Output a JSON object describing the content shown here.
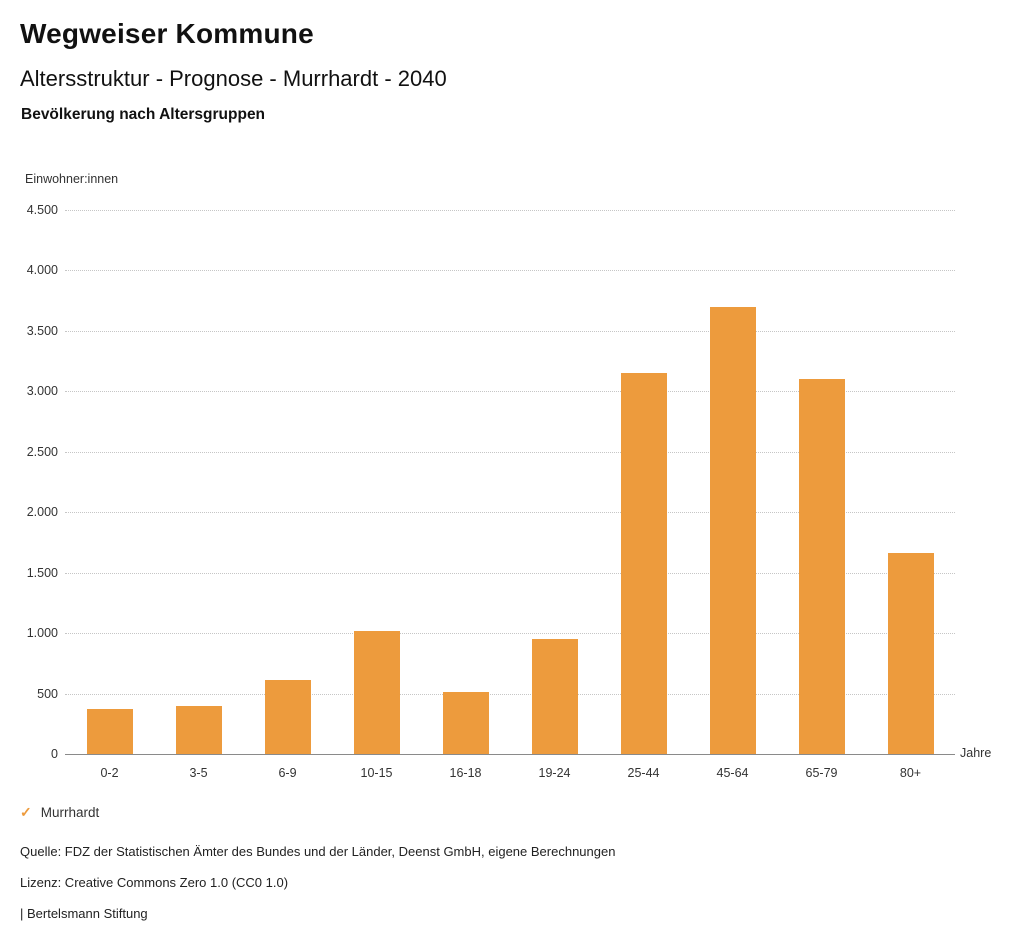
{
  "header": {
    "title": "Wegweiser Kommune",
    "subtitle": "Altersstruktur - Prognose - Murrhardt - 2040",
    "chart_subtitle": "Bevölkerung nach Altersgruppen"
  },
  "colors": {
    "accent": "#ED9B3D",
    "grid": "#c6c6c6",
    "text": "#333333"
  },
  "chart_data": {
    "type": "bar",
    "title": "Bevölkerung nach Altersgruppen",
    "categories": [
      "0-2",
      "3-5",
      "6-9",
      "10-15",
      "16-18",
      "19-24",
      "25-44",
      "45-64",
      "65-79",
      "80+"
    ],
    "series": [
      {
        "name": "Murrhardt",
        "values": [
          370,
          400,
          610,
          1020,
          510,
          950,
          3150,
          3700,
          3100,
          1660
        ]
      }
    ],
    "xlabel": "Jahre",
    "ylabel": "Einwohner:innen",
    "ylim": [
      0,
      4500
    ],
    "ytick_values": [
      0,
      500,
      1000,
      1500,
      2000,
      2500,
      3000,
      3500,
      4000,
      4500
    ],
    "ytick_labels": [
      "0",
      "500",
      "1.000",
      "1.500",
      "2.000",
      "2.500",
      "3.000",
      "3.500",
      "4.000",
      "4.500"
    ],
    "grid": "horizontal-dotted",
    "bar_color": "#ED9B3D",
    "legend_position": "bottom-left"
  },
  "legend": {
    "check_icon": "✓",
    "label": "Murrhardt"
  },
  "footer": {
    "source": "Quelle: FDZ der Statistischen Ämter des Bundes und der Länder, Deenst GmbH, eigene Berechnungen",
    "license": "Lizenz: Creative Commons Zero 1.0 (CC0 1.0)",
    "attribution": "| Bertelsmann Stiftung"
  }
}
